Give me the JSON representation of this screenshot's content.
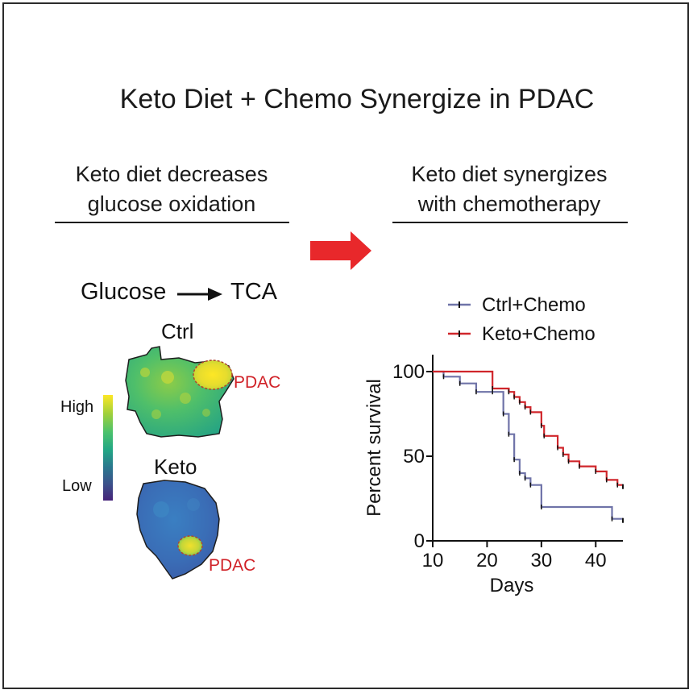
{
  "title": "Keto Diet + Chemo Synergize in PDAC",
  "left_panel": {
    "heading_line1": "Keto diet decreases",
    "heading_line2": "glucose oxidation",
    "pathway_from": "Glucose",
    "pathway_to": "TCA",
    "ctrl_label": "Ctrl",
    "keto_label": "Keto",
    "tumor_label_ctrl": "PDAC",
    "tumor_label_keto": "PDAC",
    "scale_high": "High",
    "scale_low": "Low"
  },
  "right_panel": {
    "heading_line1": "Keto diet synergizes",
    "heading_line2": "with chemotherapy"
  },
  "colors": {
    "arrow_red": "#e8282b",
    "ctrl_series": "#6f73a8",
    "keto_series": "#d0262b",
    "pdac_text": "#d02127"
  },
  "chart_data": {
    "type": "line",
    "subtype": "kaplan-meier",
    "xlabel": "Days",
    "ylabel": "Percent survival",
    "xlim": [
      10,
      45
    ],
    "ylim": [
      0,
      110
    ],
    "xticks": [
      10,
      20,
      30,
      40
    ],
    "yticks": [
      0,
      50,
      100
    ],
    "legend_position": "top",
    "series": [
      {
        "name": "Ctrl+Chemo",
        "color": "#6f73a8",
        "steps": [
          [
            10,
            100
          ],
          [
            12,
            97
          ],
          [
            15,
            93
          ],
          [
            18,
            88
          ],
          [
            21,
            88
          ],
          [
            23,
            75
          ],
          [
            24,
            63
          ],
          [
            25,
            48
          ],
          [
            26,
            40
          ],
          [
            27,
            37
          ],
          [
            28,
            33
          ],
          [
            30,
            20
          ],
          [
            43,
            13
          ],
          [
            45,
            13
          ]
        ]
      },
      {
        "name": "Keto+Chemo",
        "color": "#d0262b",
        "steps": [
          [
            10,
            100
          ],
          [
            21,
            90
          ],
          [
            24,
            88
          ],
          [
            25,
            85
          ],
          [
            26,
            82
          ],
          [
            27,
            79
          ],
          [
            28,
            76
          ],
          [
            30,
            68
          ],
          [
            30.5,
            62
          ],
          [
            33,
            55
          ],
          [
            34,
            51
          ],
          [
            35,
            47
          ],
          [
            37,
            44
          ],
          [
            40,
            41
          ],
          [
            42,
            36
          ],
          [
            44,
            33
          ],
          [
            45,
            33
          ]
        ]
      }
    ]
  }
}
